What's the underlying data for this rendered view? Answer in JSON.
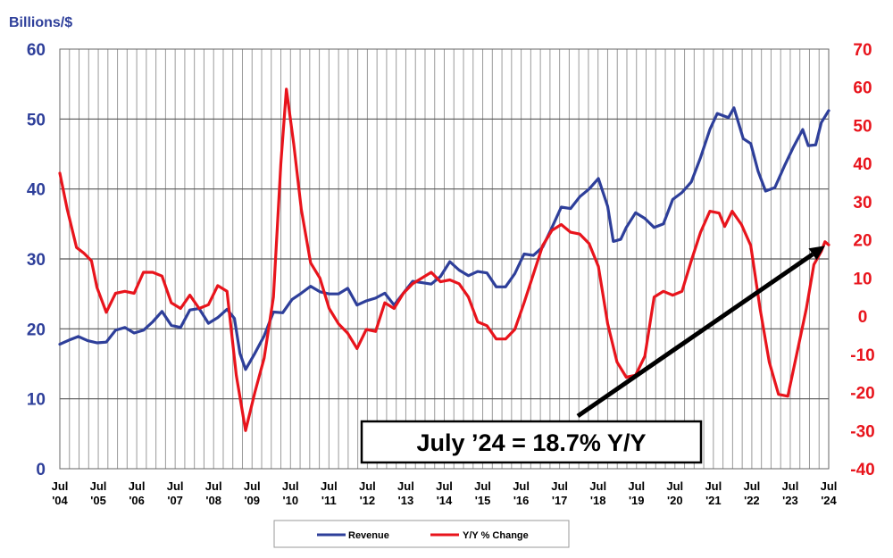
{
  "chart_data": {
    "type": "line",
    "title": "",
    "left_axis": {
      "label": "Billions/$",
      "range": [
        0,
        60
      ],
      "ticks": [
        0,
        10,
        20,
        30,
        40,
        50,
        60
      ]
    },
    "right_axis": {
      "label": "",
      "range": [
        -40,
        70
      ],
      "ticks": [
        -40,
        -30,
        -20,
        -10,
        0,
        10,
        20,
        30,
        40,
        50,
        60,
        70
      ]
    },
    "x_ticks": [
      {
        "top": "Jul",
        "bottom": "'04",
        "year": 2004.5
      },
      {
        "top": "Jul",
        "bottom": "'05",
        "year": 2005.5
      },
      {
        "top": "Jul",
        "bottom": "'06",
        "year": 2006.5
      },
      {
        "top": "Jul",
        "bottom": "'07",
        "year": 2007.5
      },
      {
        "top": "Jul",
        "bottom": "'08",
        "year": 2008.5
      },
      {
        "top": "Jul",
        "bottom": "'09",
        "year": 2009.5
      },
      {
        "top": "Jul",
        "bottom": "'10",
        "year": 2010.5
      },
      {
        "top": "Jul",
        "bottom": "'11",
        "year": 2011.5
      },
      {
        "top": "Jul",
        "bottom": "'12",
        "year": 2012.5
      },
      {
        "top": "Jul",
        "bottom": "'13",
        "year": 2013.5
      },
      {
        "top": "Jul",
        "bottom": "'14",
        "year": 2014.5
      },
      {
        "top": "Jul",
        "bottom": "'15",
        "year": 2015.5
      },
      {
        "top": "Jul",
        "bottom": "'16",
        "year": 2016.5
      },
      {
        "top": "Jul",
        "bottom": "'17",
        "year": 2017.5
      },
      {
        "top": "Jul",
        "bottom": "'18",
        "year": 2018.5
      },
      {
        "top": "Jul",
        "bottom": "'19",
        "year": 2019.5
      },
      {
        "top": "Jul",
        "bottom": "'20",
        "year": 2020.5
      },
      {
        "top": "Jul",
        "bottom": "'21",
        "year": 2021.5
      },
      {
        "top": "Jul",
        "bottom": "'22",
        "year": 2022.5
      },
      {
        "top": "Jul",
        "bottom": "'23",
        "year": 2023.5
      },
      {
        "top": "Jul",
        "bottom": "'24",
        "year": 2024.5
      }
    ],
    "x_range": [
      2004.5,
      2024.5
    ],
    "grid": {
      "vertical": true,
      "horizontal": true
    },
    "legend": {
      "placement": "bottom-center"
    },
    "annotation": {
      "text": "July ’24 = 18.7% Y/Y",
      "arrow_to": {
        "year": 2024.5,
        "value": 18.7,
        "axis": "right"
      }
    },
    "series": [
      {
        "name": "Revenue",
        "axis": "left",
        "color": "#2e3f9a",
        "points": [
          [
            2004.5,
            17.8
          ],
          [
            2004.75,
            18.4
          ],
          [
            2005.0,
            18.9
          ],
          [
            2005.25,
            18.3
          ],
          [
            2005.5,
            18.0
          ],
          [
            2005.75,
            18.1
          ],
          [
            2006.0,
            19.8
          ],
          [
            2006.25,
            20.2
          ],
          [
            2006.5,
            19.4
          ],
          [
            2006.75,
            19.8
          ],
          [
            2007.0,
            21.0
          ],
          [
            2007.25,
            22.5
          ],
          [
            2007.5,
            20.5
          ],
          [
            2007.75,
            20.2
          ],
          [
            2008.0,
            22.7
          ],
          [
            2008.25,
            22.9
          ],
          [
            2008.5,
            20.8
          ],
          [
            2008.75,
            21.6
          ],
          [
            2009.0,
            22.8
          ],
          [
            2009.2,
            21.5
          ],
          [
            2009.35,
            16.5
          ],
          [
            2009.5,
            14.2
          ],
          [
            2009.75,
            16.5
          ],
          [
            2010.0,
            19.0
          ],
          [
            2010.25,
            22.4
          ],
          [
            2010.5,
            22.3
          ],
          [
            2010.75,
            24.2
          ],
          [
            2011.0,
            25.1
          ],
          [
            2011.25,
            26.1
          ],
          [
            2011.5,
            25.3
          ],
          [
            2011.75,
            25.0
          ],
          [
            2012.0,
            25.0
          ],
          [
            2012.25,
            25.8
          ],
          [
            2012.5,
            23.4
          ],
          [
            2012.75,
            24.0
          ],
          [
            2013.0,
            24.4
          ],
          [
            2013.25,
            25.1
          ],
          [
            2013.5,
            23.4
          ],
          [
            2013.75,
            25.1
          ],
          [
            2014.0,
            26.8
          ],
          [
            2014.25,
            26.6
          ],
          [
            2014.5,
            26.4
          ],
          [
            2014.75,
            27.5
          ],
          [
            2015.0,
            29.6
          ],
          [
            2015.25,
            28.4
          ],
          [
            2015.5,
            27.6
          ],
          [
            2015.75,
            28.2
          ],
          [
            2016.0,
            28.0
          ],
          [
            2016.25,
            26.0
          ],
          [
            2016.5,
            26.0
          ],
          [
            2016.75,
            27.9
          ],
          [
            2017.0,
            30.7
          ],
          [
            2017.25,
            30.5
          ],
          [
            2017.5,
            31.7
          ],
          [
            2017.75,
            34.5
          ],
          [
            2018.0,
            37.4
          ],
          [
            2018.25,
            37.2
          ],
          [
            2018.5,
            38.9
          ],
          [
            2018.75,
            40.0
          ],
          [
            2019.0,
            41.5
          ],
          [
            2019.25,
            37.5
          ],
          [
            2019.4,
            32.5
          ],
          [
            2019.6,
            32.8
          ],
          [
            2019.75,
            34.5
          ],
          [
            2020.0,
            36.6
          ],
          [
            2020.25,
            35.8
          ],
          [
            2020.5,
            34.5
          ],
          [
            2020.75,
            35.0
          ],
          [
            2021.0,
            38.5
          ],
          [
            2021.25,
            39.5
          ],
          [
            2021.5,
            41.0
          ],
          [
            2021.75,
            44.5
          ],
          [
            2022.0,
            48.5
          ],
          [
            2022.2,
            50.8
          ],
          [
            2022.5,
            50.2
          ],
          [
            2022.65,
            51.6
          ],
          [
            2022.9,
            47.2
          ],
          [
            2023.1,
            46.5
          ],
          [
            2023.3,
            42.5
          ],
          [
            2023.5,
            39.7
          ],
          [
            2023.75,
            40.2
          ],
          [
            2024.0,
            43.2
          ],
          [
            2024.25,
            46.0
          ],
          [
            2024.5,
            48.5
          ],
          [
            2024.65,
            46.2
          ],
          [
            2024.85,
            46.3
          ],
          [
            2025.0,
            49.5
          ],
          [
            2025.2,
            51.2
          ]
        ]
      },
      {
        "name": "Y/Y % Change",
        "axis": "right",
        "color": "#e8141c",
        "points": [
          [
            2004.5,
            37.5
          ],
          [
            2004.7,
            28.0
          ],
          [
            2004.95,
            18.0
          ],
          [
            2005.15,
            16.5
          ],
          [
            2005.35,
            14.5
          ],
          [
            2005.5,
            7.5
          ],
          [
            2005.75,
            1.0
          ],
          [
            2006.0,
            6.0
          ],
          [
            2006.25,
            6.5
          ],
          [
            2006.5,
            6.0
          ],
          [
            2006.75,
            11.5
          ],
          [
            2007.0,
            11.5
          ],
          [
            2007.25,
            10.5
          ],
          [
            2007.5,
            3.5
          ],
          [
            2007.75,
            2.0
          ],
          [
            2008.0,
            5.5
          ],
          [
            2008.25,
            2.0
          ],
          [
            2008.5,
            3.0
          ],
          [
            2008.75,
            8.0
          ],
          [
            2009.0,
            6.5
          ],
          [
            2009.25,
            -15.5
          ],
          [
            2009.5,
            -30.0
          ],
          [
            2009.75,
            -20.0
          ],
          [
            2010.0,
            -11.0
          ],
          [
            2010.25,
            5.0
          ],
          [
            2010.45,
            40.0
          ],
          [
            2010.6,
            59.5
          ],
          [
            2010.8,
            45.0
          ],
          [
            2011.0,
            28.0
          ],
          [
            2011.25,
            14.0
          ],
          [
            2011.5,
            10.0
          ],
          [
            2011.75,
            2.0
          ],
          [
            2012.0,
            -2.0
          ],
          [
            2012.25,
            -4.5
          ],
          [
            2012.5,
            -8.5
          ],
          [
            2012.75,
            -3.5
          ],
          [
            2013.0,
            -4.0
          ],
          [
            2013.25,
            3.5
          ],
          [
            2013.5,
            2.0
          ],
          [
            2013.75,
            6.0
          ],
          [
            2014.0,
            8.5
          ],
          [
            2014.25,
            10.0
          ],
          [
            2014.5,
            11.5
          ],
          [
            2014.75,
            9.0
          ],
          [
            2015.0,
            9.5
          ],
          [
            2015.25,
            8.5
          ],
          [
            2015.5,
            5.0
          ],
          [
            2015.75,
            -1.5
          ],
          [
            2016.0,
            -2.5
          ],
          [
            2016.25,
            -6.0
          ],
          [
            2016.5,
            -6.0
          ],
          [
            2016.75,
            -3.5
          ],
          [
            2017.0,
            3.5
          ],
          [
            2017.25,
            11.0
          ],
          [
            2017.5,
            18.5
          ],
          [
            2017.75,
            22.5
          ],
          [
            2018.0,
            24.0
          ],
          [
            2018.25,
            22.0
          ],
          [
            2018.5,
            21.5
          ],
          [
            2018.75,
            19.0
          ],
          [
            2019.0,
            13.0
          ],
          [
            2019.25,
            -2.0
          ],
          [
            2019.5,
            -12.0
          ],
          [
            2019.75,
            -16.0
          ],
          [
            2020.0,
            -15.5
          ],
          [
            2020.25,
            -10.5
          ],
          [
            2020.5,
            5.0
          ],
          [
            2020.75,
            6.5
          ],
          [
            2021.0,
            5.5
          ],
          [
            2021.25,
            6.5
          ],
          [
            2021.5,
            14.5
          ],
          [
            2021.75,
            22.0
          ],
          [
            2022.0,
            27.5
          ],
          [
            2022.25,
            27.0
          ],
          [
            2022.4,
            23.5
          ],
          [
            2022.6,
            27.5
          ],
          [
            2022.85,
            24.0
          ],
          [
            2023.1,
            18.5
          ],
          [
            2023.35,
            2.0
          ],
          [
            2023.6,
            -12.0
          ],
          [
            2023.85,
            -20.5
          ],
          [
            2024.1,
            -21.0
          ],
          [
            2024.35,
            -9.5
          ],
          [
            2024.6,
            2.0
          ],
          [
            2024.8,
            13.5
          ],
          [
            2025.0,
            17.0
          ],
          [
            2025.1,
            19.5
          ],
          [
            2025.2,
            18.7
          ]
        ]
      }
    ]
  }
}
